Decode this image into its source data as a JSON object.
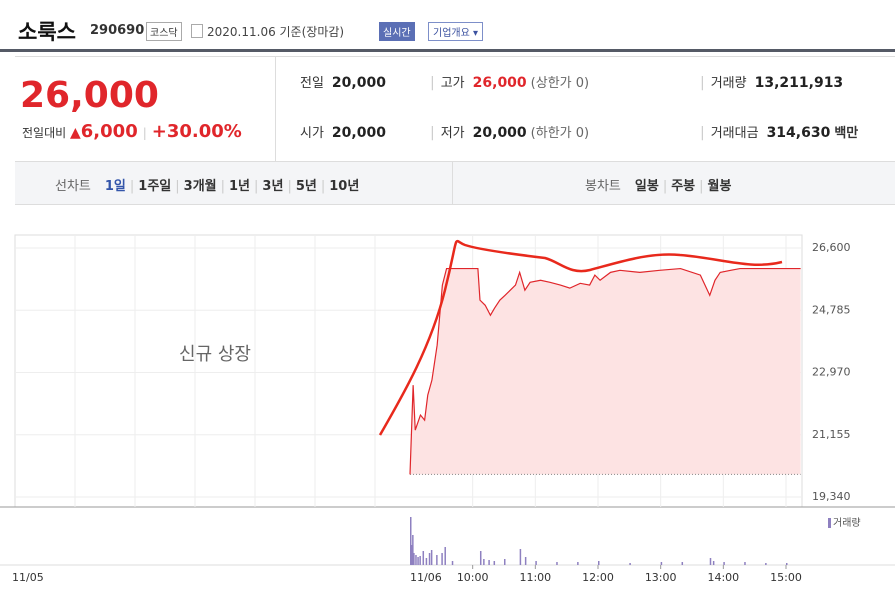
{
  "header": {
    "name": "소룩스",
    "code": "290690",
    "market": "코스닥",
    "date": "2020.11.06 기준(장마감)",
    "realtime": "실시간",
    "company_button": "기업개요"
  },
  "summary": {
    "price": "26,000",
    "change_label": "전일대비",
    "change": "6,000",
    "change_rate": "+30.00%",
    "items": [
      {
        "label": "전일",
        "value": "20,000"
      },
      {
        "label": "고가",
        "value": "26,000",
        "note": "(상한가 0)"
      },
      {
        "label": "거래량",
        "value": "13,211,913"
      },
      {
        "label": "시가",
        "value": "20,000"
      },
      {
        "label": "저가",
        "value": "20,000",
        "note": "(하한가 0)"
      },
      {
        "label": "거래대금",
        "value": "314,630",
        "unit": "백만"
      }
    ]
  },
  "tabs": {
    "line_label": "선차트",
    "line_periods": [
      "1일",
      "1주일",
      "3개월",
      "1년",
      "3년",
      "5년",
      "10년"
    ],
    "candle_label": "봉차트",
    "candle_periods": [
      "일봉",
      "주봉",
      "월봉"
    ]
  },
  "chart_data": {
    "type": "line",
    "annotation": "신규 상장",
    "color": "#e0262b",
    "fill": "#fde3e3",
    "x": [
      "09:00",
      "09:03",
      "09:05",
      "09:10",
      "09:14",
      "09:17",
      "09:21",
      "09:26",
      "09:31",
      "09:35",
      "10:05",
      "10:07",
      "10:12",
      "10:17",
      "10:21",
      "10:26",
      "10:31",
      "10:36",
      "10:41",
      "10:45",
      "10:50",
      "10:55",
      "11:05",
      "11:14",
      "11:24",
      "11:33",
      "11:43",
      "11:52",
      "11:57",
      "12:02",
      "12:12",
      "12:21",
      "12:40",
      "12:59",
      "13:19",
      "13:38",
      "13:47",
      "13:52",
      "13:57",
      "14:07",
      "14:16",
      "14:35",
      "15:14"
    ],
    "values": [
      20000,
      22600,
      21290,
      21730,
      21580,
      22310,
      22750,
      23770,
      25520,
      26000,
      26000,
      25080,
      24930,
      24640,
      24850,
      25080,
      25220,
      25370,
      25520,
      25890,
      25370,
      25600,
      25660,
      25600,
      25520,
      25430,
      25570,
      25520,
      25810,
      25660,
      25890,
      25950,
      25890,
      25950,
      26000,
      25810,
      25220,
      25660,
      25890,
      25950,
      26000,
      26000,
      26000
    ],
    "baseline": 20000,
    "ylim": [
      19049,
      26979
    ],
    "yticks": [
      {
        "value": 26600,
        "label": "26,600"
      },
      {
        "value": 24785,
        "label": "24,785"
      },
      {
        "value": 22970,
        "label": "22,970"
      },
      {
        "value": 21155,
        "label": "21,155"
      },
      {
        "value": 19340,
        "label": "19,340"
      }
    ],
    "xticks": [
      "10:00",
      "11:00",
      "12:00",
      "13:00",
      "14:00",
      "15:00"
    ],
    "date_labels": [
      "11/05",
      "11/06"
    ],
    "volume": {
      "name": "거래량",
      "color": "#8e80c0",
      "x": [
        "09:00",
        "09:01",
        "09:02",
        "09:03",
        "09:05",
        "09:07",
        "09:09",
        "09:12",
        "09:15",
        "09:18",
        "09:20",
        "09:25",
        "09:30",
        "09:33",
        "09:40",
        "10:07",
        "10:10",
        "10:15",
        "10:20",
        "10:30",
        "10:45",
        "10:50",
        "11:00",
        "11:20",
        "11:40",
        "12:00",
        "12:30",
        "13:00",
        "13:20",
        "13:47",
        "13:50",
        "14:00",
        "14:20",
        "14:40",
        "15:00"
      ],
      "values": [
        48,
        20,
        30,
        12,
        10,
        8,
        9,
        14,
        7,
        12,
        15,
        10,
        12,
        18,
        4,
        14,
        6,
        5,
        4,
        6,
        16,
        8,
        4,
        3,
        3,
        4,
        2,
        3,
        3,
        7,
        4,
        3,
        3,
        2,
        2
      ]
    }
  }
}
